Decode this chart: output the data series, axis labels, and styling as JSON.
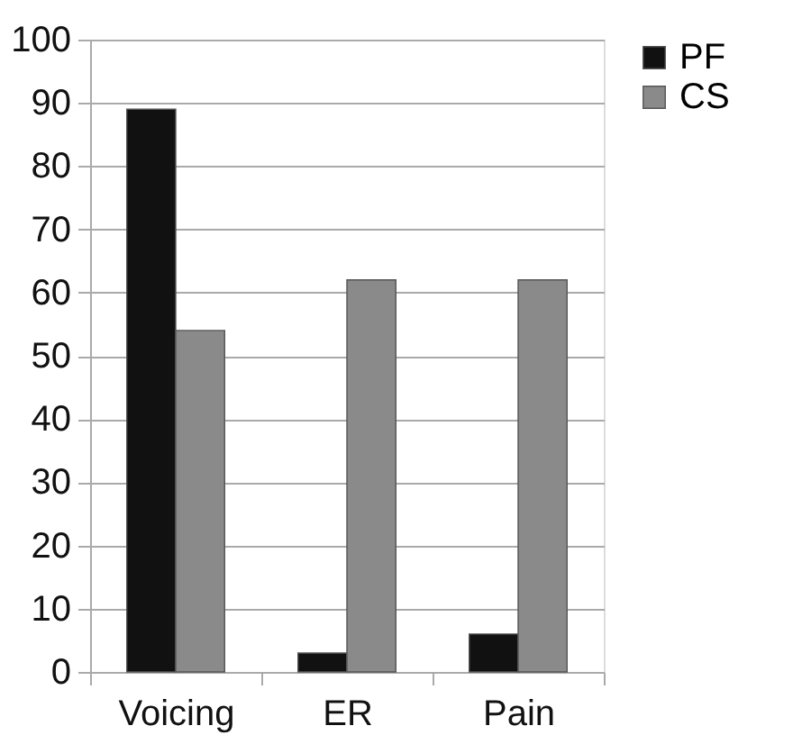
{
  "chart_data": {
    "type": "bar",
    "categories": [
      "Voicing",
      "ER",
      "Pain"
    ],
    "series": [
      {
        "name": "PF",
        "color": "#111111",
        "values": [
          89,
          3,
          6
        ]
      },
      {
        "name": "CS",
        "color": "#8a8a8a",
        "values": [
          54,
          62,
          62
        ]
      }
    ],
    "ylim": [
      0,
      100
    ],
    "yticks": [
      0,
      10,
      20,
      30,
      40,
      50,
      60,
      70,
      80,
      90,
      100
    ],
    "grid": "y",
    "legend": "right"
  }
}
